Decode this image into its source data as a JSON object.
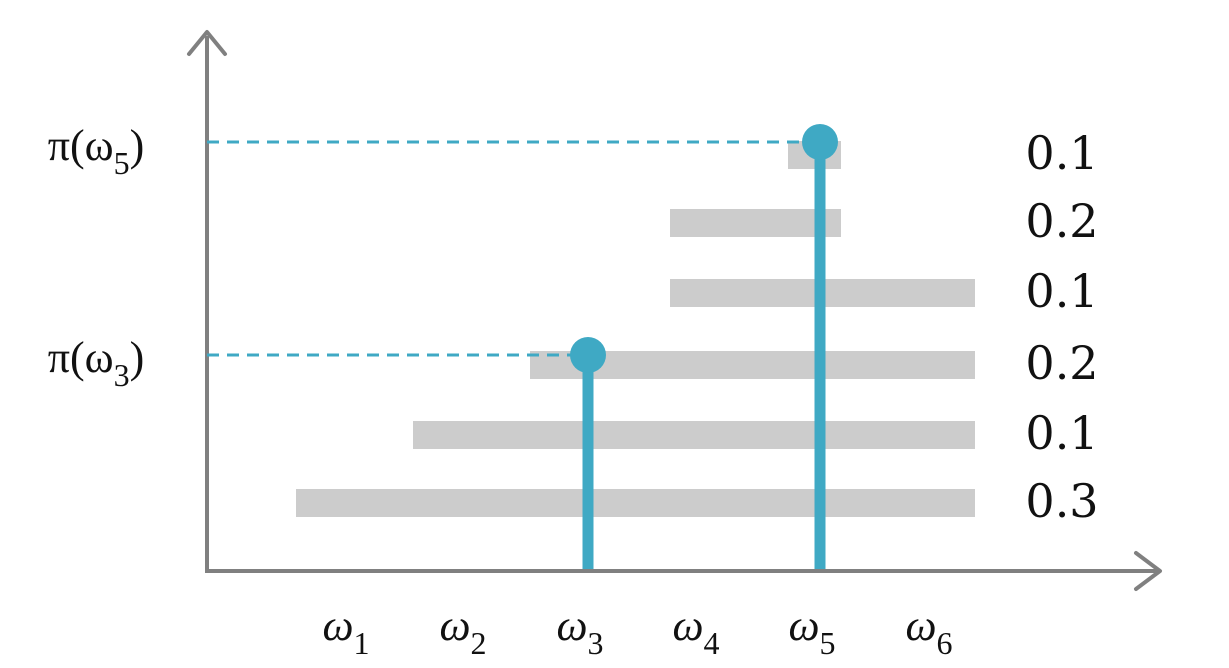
{
  "colors": {
    "axis": "#808080",
    "bar": "#cccccc",
    "stem": "#3fa9c4",
    "stem_overlap": "#3a8ea3",
    "text": "#111111"
  },
  "x_labels": [
    {
      "sym": "ω",
      "sub": "1"
    },
    {
      "sym": "ω",
      "sub": "2"
    },
    {
      "sym": "ω",
      "sub": "3"
    },
    {
      "sym": "ω",
      "sub": "4"
    },
    {
      "sym": "ω",
      "sub": "5"
    },
    {
      "sym": "ω",
      "sub": "6"
    }
  ],
  "y_labels": [
    {
      "pre": "π(ω",
      "sub": "5",
      "post": ")",
      "target": "ω5"
    },
    {
      "pre": "π(ω",
      "sub": "3",
      "post": ")",
      "target": "ω3"
    }
  ],
  "levels": [
    {
      "value": "0.1",
      "from": 5,
      "to": 5
    },
    {
      "value": "0.2",
      "from": 4,
      "to": 5
    },
    {
      "value": "0.1",
      "from": 4,
      "to": 6
    },
    {
      "value": "0.2",
      "from": 3,
      "to": 6
    },
    {
      "value": "0.1",
      "from": 2,
      "to": 6
    },
    {
      "value": "0.3",
      "from": 1,
      "to": 6
    }
  ],
  "stems": [
    {
      "at": 3,
      "height_level": 4
    },
    {
      "at": 5,
      "height_level": 1
    }
  ]
}
